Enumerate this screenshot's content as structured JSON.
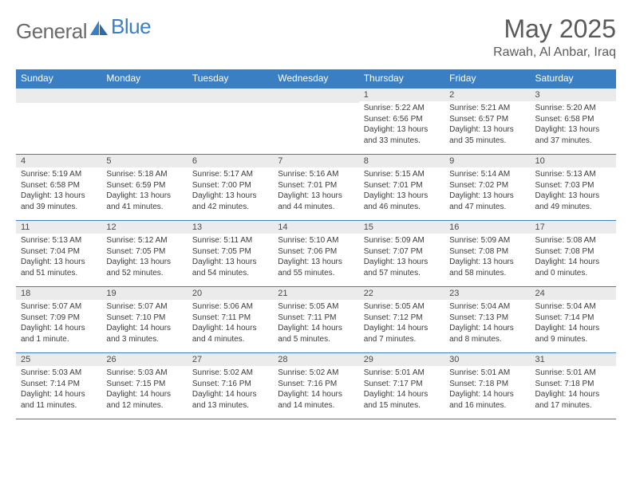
{
  "logo": {
    "text1": "General",
    "text2": "Blue"
  },
  "title": "May 2025",
  "location": "Rawah, Al Anbar, Iraq",
  "colors": {
    "accent": "#3a7fc4",
    "header_bg": "#3a7fc4",
    "daynum_bg": "#ebebeb",
    "text": "#3b3b3b",
    "title_text": "#5a5a5a",
    "logo_gray": "#6a6a6a"
  },
  "weekdays": [
    "Sunday",
    "Monday",
    "Tuesday",
    "Wednesday",
    "Thursday",
    "Friday",
    "Saturday"
  ],
  "weeks": [
    [
      {
        "n": "",
        "sr": "",
        "ss": "",
        "dl": ""
      },
      {
        "n": "",
        "sr": "",
        "ss": "",
        "dl": ""
      },
      {
        "n": "",
        "sr": "",
        "ss": "",
        "dl": ""
      },
      {
        "n": "",
        "sr": "",
        "ss": "",
        "dl": ""
      },
      {
        "n": "1",
        "sr": "Sunrise: 5:22 AM",
        "ss": "Sunset: 6:56 PM",
        "dl": "Daylight: 13 hours and 33 minutes."
      },
      {
        "n": "2",
        "sr": "Sunrise: 5:21 AM",
        "ss": "Sunset: 6:57 PM",
        "dl": "Daylight: 13 hours and 35 minutes."
      },
      {
        "n": "3",
        "sr": "Sunrise: 5:20 AM",
        "ss": "Sunset: 6:58 PM",
        "dl": "Daylight: 13 hours and 37 minutes."
      }
    ],
    [
      {
        "n": "4",
        "sr": "Sunrise: 5:19 AM",
        "ss": "Sunset: 6:58 PM",
        "dl": "Daylight: 13 hours and 39 minutes."
      },
      {
        "n": "5",
        "sr": "Sunrise: 5:18 AM",
        "ss": "Sunset: 6:59 PM",
        "dl": "Daylight: 13 hours and 41 minutes."
      },
      {
        "n": "6",
        "sr": "Sunrise: 5:17 AM",
        "ss": "Sunset: 7:00 PM",
        "dl": "Daylight: 13 hours and 42 minutes."
      },
      {
        "n": "7",
        "sr": "Sunrise: 5:16 AM",
        "ss": "Sunset: 7:01 PM",
        "dl": "Daylight: 13 hours and 44 minutes."
      },
      {
        "n": "8",
        "sr": "Sunrise: 5:15 AM",
        "ss": "Sunset: 7:01 PM",
        "dl": "Daylight: 13 hours and 46 minutes."
      },
      {
        "n": "9",
        "sr": "Sunrise: 5:14 AM",
        "ss": "Sunset: 7:02 PM",
        "dl": "Daylight: 13 hours and 47 minutes."
      },
      {
        "n": "10",
        "sr": "Sunrise: 5:13 AM",
        "ss": "Sunset: 7:03 PM",
        "dl": "Daylight: 13 hours and 49 minutes."
      }
    ],
    [
      {
        "n": "11",
        "sr": "Sunrise: 5:13 AM",
        "ss": "Sunset: 7:04 PM",
        "dl": "Daylight: 13 hours and 51 minutes."
      },
      {
        "n": "12",
        "sr": "Sunrise: 5:12 AM",
        "ss": "Sunset: 7:05 PM",
        "dl": "Daylight: 13 hours and 52 minutes."
      },
      {
        "n": "13",
        "sr": "Sunrise: 5:11 AM",
        "ss": "Sunset: 7:05 PM",
        "dl": "Daylight: 13 hours and 54 minutes."
      },
      {
        "n": "14",
        "sr": "Sunrise: 5:10 AM",
        "ss": "Sunset: 7:06 PM",
        "dl": "Daylight: 13 hours and 55 minutes."
      },
      {
        "n": "15",
        "sr": "Sunrise: 5:09 AM",
        "ss": "Sunset: 7:07 PM",
        "dl": "Daylight: 13 hours and 57 minutes."
      },
      {
        "n": "16",
        "sr": "Sunrise: 5:09 AM",
        "ss": "Sunset: 7:08 PM",
        "dl": "Daylight: 13 hours and 58 minutes."
      },
      {
        "n": "17",
        "sr": "Sunrise: 5:08 AM",
        "ss": "Sunset: 7:08 PM",
        "dl": "Daylight: 14 hours and 0 minutes."
      }
    ],
    [
      {
        "n": "18",
        "sr": "Sunrise: 5:07 AM",
        "ss": "Sunset: 7:09 PM",
        "dl": "Daylight: 14 hours and 1 minute."
      },
      {
        "n": "19",
        "sr": "Sunrise: 5:07 AM",
        "ss": "Sunset: 7:10 PM",
        "dl": "Daylight: 14 hours and 3 minutes."
      },
      {
        "n": "20",
        "sr": "Sunrise: 5:06 AM",
        "ss": "Sunset: 7:11 PM",
        "dl": "Daylight: 14 hours and 4 minutes."
      },
      {
        "n": "21",
        "sr": "Sunrise: 5:05 AM",
        "ss": "Sunset: 7:11 PM",
        "dl": "Daylight: 14 hours and 5 minutes."
      },
      {
        "n": "22",
        "sr": "Sunrise: 5:05 AM",
        "ss": "Sunset: 7:12 PM",
        "dl": "Daylight: 14 hours and 7 minutes."
      },
      {
        "n": "23",
        "sr": "Sunrise: 5:04 AM",
        "ss": "Sunset: 7:13 PM",
        "dl": "Daylight: 14 hours and 8 minutes."
      },
      {
        "n": "24",
        "sr": "Sunrise: 5:04 AM",
        "ss": "Sunset: 7:14 PM",
        "dl": "Daylight: 14 hours and 9 minutes."
      }
    ],
    [
      {
        "n": "25",
        "sr": "Sunrise: 5:03 AM",
        "ss": "Sunset: 7:14 PM",
        "dl": "Daylight: 14 hours and 11 minutes."
      },
      {
        "n": "26",
        "sr": "Sunrise: 5:03 AM",
        "ss": "Sunset: 7:15 PM",
        "dl": "Daylight: 14 hours and 12 minutes."
      },
      {
        "n": "27",
        "sr": "Sunrise: 5:02 AM",
        "ss": "Sunset: 7:16 PM",
        "dl": "Daylight: 14 hours and 13 minutes."
      },
      {
        "n": "28",
        "sr": "Sunrise: 5:02 AM",
        "ss": "Sunset: 7:16 PM",
        "dl": "Daylight: 14 hours and 14 minutes."
      },
      {
        "n": "29",
        "sr": "Sunrise: 5:01 AM",
        "ss": "Sunset: 7:17 PM",
        "dl": "Daylight: 14 hours and 15 minutes."
      },
      {
        "n": "30",
        "sr": "Sunrise: 5:01 AM",
        "ss": "Sunset: 7:18 PM",
        "dl": "Daylight: 14 hours and 16 minutes."
      },
      {
        "n": "31",
        "sr": "Sunrise: 5:01 AM",
        "ss": "Sunset: 7:18 PM",
        "dl": "Daylight: 14 hours and 17 minutes."
      }
    ]
  ]
}
